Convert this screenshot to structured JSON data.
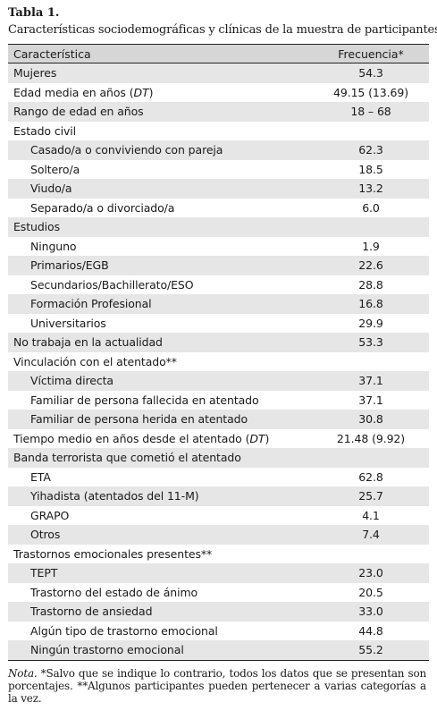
{
  "title": "Tabla 1.",
  "caption": "Características sociodemográficas y clínicas de la muestra de participantes",
  "header": {
    "col1": "Característica",
    "col2": "Frecuencia*"
  },
  "rows": [
    {
      "label": "Mujeres",
      "value": "54.3",
      "sub": false,
      "shade": true
    },
    {
      "label": "Edad media en años (DT)",
      "value": "49.15 (13.69)",
      "sub": false,
      "shade": false
    },
    {
      "label": "Rango de edad en años",
      "value": "18 – 68",
      "sub": false,
      "shade": true
    },
    {
      "label": "Estado civil",
      "value": "",
      "sub": false,
      "shade": false
    },
    {
      "label": "Casado/a o conviviendo con pareja",
      "value": "62.3",
      "sub": true,
      "shade": true
    },
    {
      "label": "Soltero/a",
      "value": "18.5",
      "sub": true,
      "shade": false
    },
    {
      "label": "Viudo/a",
      "value": "13.2",
      "sub": true,
      "shade": true
    },
    {
      "label": "Separado/a o divorciado/a",
      "value": "6.0",
      "sub": true,
      "shade": false
    },
    {
      "label": "Estudios",
      "value": "",
      "sub": false,
      "shade": true
    },
    {
      "label": "Ninguno",
      "value": "1.9",
      "sub": true,
      "shade": false
    },
    {
      "label": "Primarios/EGB",
      "value": "22.6",
      "sub": true,
      "shade": true
    },
    {
      "label": "Secundarios/Bachillerato/ESO",
      "value": "28.8",
      "sub": true,
      "shade": false
    },
    {
      "label": "Formación Profesional",
      "value": "16.8",
      "sub": true,
      "shade": true
    },
    {
      "label": "Universitarios",
      "value": "29.9",
      "sub": true,
      "shade": false
    },
    {
      "label": "No trabaja en la actualidad",
      "value": "53.3",
      "sub": false,
      "shade": true
    },
    {
      "label": "Vinculación con el atentado**",
      "value": "",
      "sub": false,
      "shade": false
    },
    {
      "label": "Víctima directa",
      "value": "37.1",
      "sub": true,
      "shade": true
    },
    {
      "label": "Familiar de persona fallecida en atentado",
      "value": "37.1",
      "sub": true,
      "shade": false
    },
    {
      "label": "Familiar de persona herida en atentado",
      "value": "30.8",
      "sub": true,
      "shade": true
    },
    {
      "label": "Tiempo medio en años desde el atentado (DT)",
      "value": "21.48 (9.92)",
      "sub": false,
      "shade": false
    },
    {
      "label": "Banda terrorista que cometió el atentado",
      "value": "",
      "sub": false,
      "shade": true
    },
    {
      "label": "ETA",
      "value": "62.8",
      "sub": true,
      "shade": false
    },
    {
      "label": "Yihadista (atentados del 11-M)",
      "value": "25.7",
      "sub": true,
      "shade": true
    },
    {
      "label": "GRAPO",
      "value": "4.1",
      "sub": true,
      "shade": false
    },
    {
      "label": "Otros",
      "value": "7.4",
      "sub": true,
      "shade": true
    },
    {
      "label": "Trastornos emocionales presentes**",
      "value": "",
      "sub": false,
      "shade": false
    },
    {
      "label": "TEPT",
      "value": "23.0",
      "sub": true,
      "shade": true
    },
    {
      "label": "Trastorno del estado de ánimo",
      "value": "20.5",
      "sub": true,
      "shade": false
    },
    {
      "label": "Trastorno de ansiedad",
      "value": "33.0",
      "sub": true,
      "shade": true
    },
    {
      "label": "Algún tipo de trastorno emocional",
      "value": "44.8",
      "sub": true,
      "shade": false
    },
    {
      "label": "Ningún trastorno emocional",
      "value": "55.2",
      "sub": true,
      "shade": true
    }
  ],
  "note": {
    "lead": "Nota.",
    "text": " *Salvo que se indique lo contrario, todos los datos que se presentan son porcentajes. **Algunos participantes pueden pertenecer a varias categorías a la vez."
  }
}
